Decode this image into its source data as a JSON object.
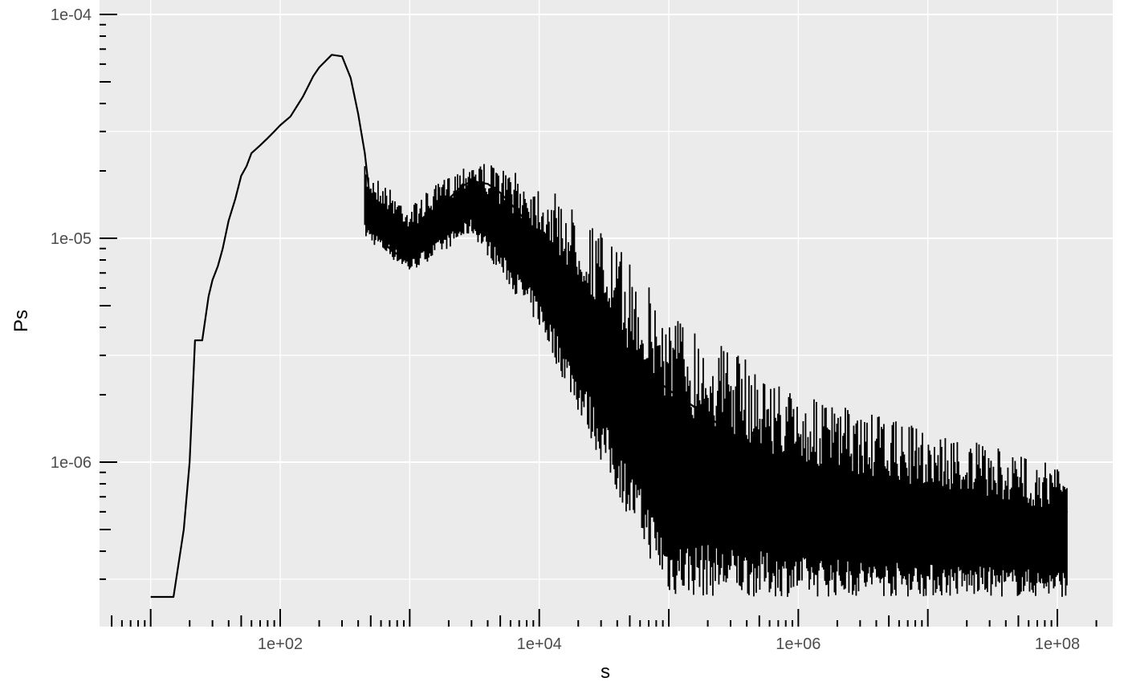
{
  "chart_data": {
    "type": "line",
    "title": "",
    "xlabel": "s",
    "ylabel": "Ps",
    "x_scale": "log10",
    "y_scale": "log10",
    "xlim": [
      5,
      250000000
    ],
    "ylim": [
      2.1e-07,
      0.0001
    ],
    "x_tick_labels": [
      {
        "value": 100,
        "label": "1e+02"
      },
      {
        "value": 10000,
        "label": "1e+04"
      },
      {
        "value": 1000000,
        "label": "1e+06"
      },
      {
        "value": 100000000,
        "label": "1e+08"
      }
    ],
    "y_tick_labels": [
      {
        "value": 1e-06,
        "label": "1e-06"
      },
      {
        "value": 1e-05,
        "label": "1e-05"
      },
      {
        "value": 0.0001,
        "label": "1e-04"
      }
    ],
    "grid": true,
    "legend": "none",
    "series": [
      {
        "color": "#000000",
        "x": [
          10,
          15,
          18,
          20,
          22,
          25,
          28,
          30,
          33,
          36,
          40,
          45,
          50,
          55,
          60,
          70,
          80,
          90,
          100,
          120,
          150,
          180,
          200,
          250,
          300,
          350,
          400,
          450,
          500,
          600,
          700,
          800,
          1000,
          1200,
          1500,
          2000,
          2500,
          3000,
          4000,
          5000,
          7000,
          10000,
          15000,
          20000,
          30000,
          50000,
          70000,
          100000,
          150000,
          200000,
          300000,
          500000,
          700000,
          1000000,
          2000000,
          3000000,
          5000000,
          10000000,
          20000000,
          50000000,
          100000000,
          120000000
        ],
        "y": [
          2.5e-07,
          2.5e-07,
          5e-07,
          1e-06,
          3.5e-06,
          3.5e-06,
          5.5e-06,
          6.5e-06,
          7.5e-06,
          9e-06,
          1.2e-05,
          1.5e-05,
          1.9e-05,
          2.1e-05,
          2.4e-05,
          2.6e-05,
          2.8e-05,
          3e-05,
          3.2e-05,
          3.5e-05,
          4.3e-05,
          5.3e-05,
          5.8e-05,
          6.6e-05,
          6.5e-05,
          5.2e-05,
          3.6e-05,
          2.4e-05,
          1.4e-05,
          1e-05,
          9e-06,
          8.5e-06,
          9e-06,
          1.05e-05,
          1.25e-05,
          1.5e-05,
          1.7e-05,
          1.8e-05,
          1.75e-05,
          1.6e-05,
          1.3e-05,
          1e-05,
          7e-06,
          5.2e-06,
          4e-06,
          3e-06,
          2.5e-06,
          2.1e-06,
          1.8e-06,
          1.6e-06,
          1.35e-06,
          1.15e-06,
          1.05e-06,
          9.5e-07,
          8.5e-07,
          8e-07,
          7.5e-07,
          7e-07,
          6.5e-07,
          6.2e-07,
          6e-07,
          6e-07
        ],
        "noise_band": {
          "x": [
            450,
            1000,
            3000,
            10000,
            30000,
            100000,
            1000000,
            120000000
          ],
          "low": [
            1e-05,
            7e-06,
            1.05e-05,
            4e-06,
            1e-06,
            2.5e-07,
            2.5e-07,
            2.5e-07
          ],
          "high": [
            2.1e-05,
            1.4e-05,
            2.3e-05,
            1.8e-05,
            1.1e-05,
            5e-06,
            2e-06,
            9.5e-07
          ]
        }
      }
    ]
  }
}
